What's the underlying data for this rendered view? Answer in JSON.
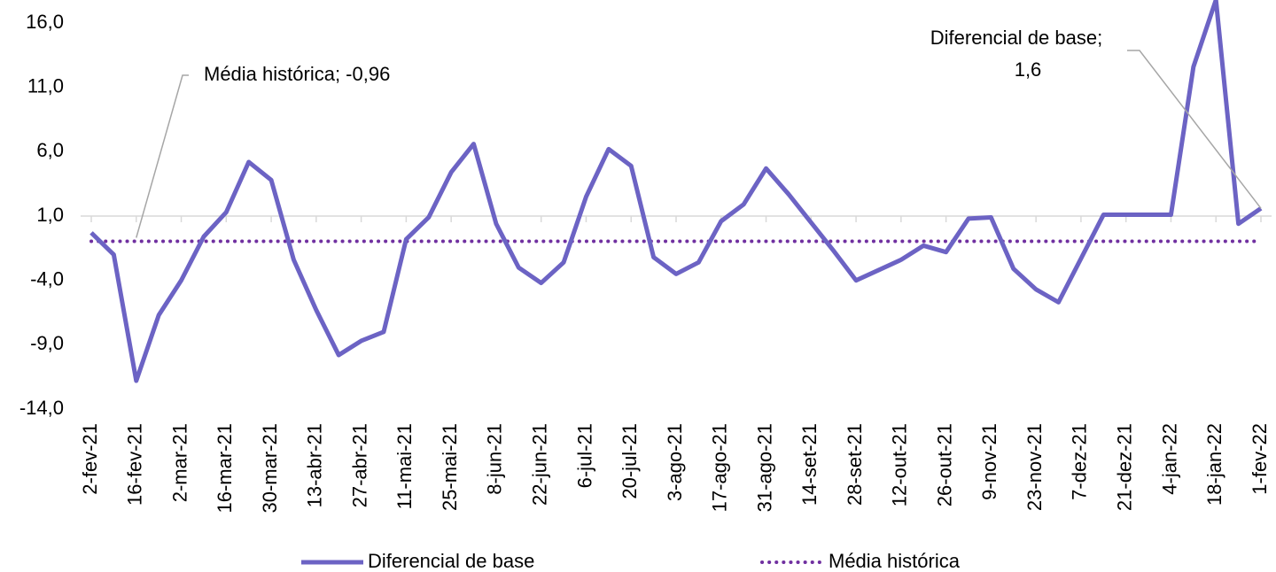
{
  "chart_data": {
    "type": "line",
    "categories": [
      "2-fev-21",
      null,
      "16-fev-21",
      null,
      "2-mar-21",
      null,
      "16-mar-21",
      null,
      "30-mar-21",
      null,
      "13-abr-21",
      null,
      "27-abr-21",
      null,
      "11-mai-21",
      null,
      "25-mai-21",
      null,
      "8-jun-21",
      null,
      "22-jun-21",
      null,
      "6-jul-21",
      null,
      "20-jul-21",
      null,
      "3-ago-21",
      null,
      "17-ago-21",
      null,
      "31-ago-21",
      null,
      "14-set-21",
      null,
      "28-set-21",
      null,
      "12-out-21",
      null,
      "26-out-21",
      null,
      "9-nov-21",
      null,
      "23-nov-21",
      null,
      "7-dez-21",
      null,
      "21-dez-21",
      null,
      "4-jan-22",
      null,
      "18-jan-22",
      null,
      "1-fev-22"
    ],
    "series": [
      {
        "name": "Diferencial de base",
        "color": "#6c63c4",
        "style": "solid",
        "values": [
          -0.3,
          -2.0,
          -11.8,
          -6.7,
          -4.0,
          -0.6,
          1.3,
          5.2,
          3.8,
          -2.4,
          -6.3,
          -9.8,
          -8.7,
          -8.0,
          -0.8,
          0.9,
          4.4,
          6.6,
          0.4,
          -3.0,
          -4.2,
          -2.6,
          2.5,
          6.2,
          4.9,
          -2.2,
          -3.5,
          -2.6,
          0.6,
          1.9,
          4.7,
          2.7,
          0.5,
          -1.7,
          -4.0,
          -3.2,
          -2.4,
          -1.3,
          -1.8,
          0.8,
          0.9,
          -3.1,
          -4.7,
          -5.7,
          -2.3,
          1.1,
          1.1,
          1.1,
          1.1,
          12.6,
          17.8,
          0.4,
          1.6
        ]
      },
      {
        "name": "Média histórica",
        "color": "#7030a0",
        "style": "dotted",
        "values": [
          -0.96,
          -0.96,
          -0.96,
          -0.96,
          -0.96,
          -0.96,
          -0.96,
          -0.96,
          -0.96,
          -0.96,
          -0.96,
          -0.96,
          -0.96,
          -0.96,
          -0.96,
          -0.96,
          -0.96,
          -0.96,
          -0.96,
          -0.96,
          -0.96,
          -0.96,
          -0.96,
          -0.96,
          -0.96,
          -0.96,
          -0.96,
          -0.96,
          -0.96,
          -0.96,
          -0.96,
          -0.96,
          -0.96,
          -0.96,
          -0.96,
          -0.96,
          -0.96,
          -0.96,
          -0.96,
          -0.96,
          -0.96,
          -0.96,
          -0.96,
          -0.96,
          -0.96,
          -0.96,
          -0.96,
          -0.96,
          -0.96,
          -0.96,
          -0.96,
          -0.96,
          -0.96
        ]
      }
    ],
    "ylim": [
      -14,
      16
    ],
    "yticks": [
      {
        "value": -14,
        "label": "-14,0"
      },
      {
        "value": -9,
        "label": "-9,0"
      },
      {
        "value": -4,
        "label": "-4,0"
      },
      {
        "value": 1,
        "label": "1,0"
      },
      {
        "value": 6,
        "label": "6,0"
      },
      {
        "value": 11,
        "label": "11,0"
      },
      {
        "value": 16,
        "label": "16,0"
      }
    ],
    "xaxis_crosses": 1,
    "grid": false,
    "legend": "bottom",
    "annotations": [
      [
        "Média histórica; -0,96"
      ],
      [
        "Diferencial de base;",
        "1,6"
      ]
    ]
  }
}
